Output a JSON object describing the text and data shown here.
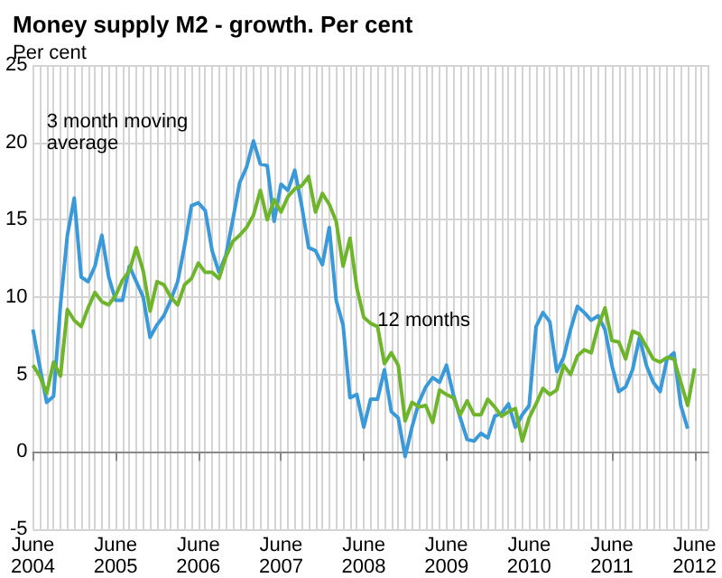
{
  "chart_data": {
    "type": "line",
    "title": "Money supply M2 - growth. Per cent",
    "ylabel": "Per cent",
    "series": [
      {
        "name": "3 month moving average",
        "color": "#3a9ad9",
        "x": [
          "2004-06",
          "2004-07",
          "2004-08",
          "2004-09",
          "2004-10",
          "2004-11",
          "2004-12",
          "2005-01",
          "2005-02",
          "2005-03",
          "2005-04",
          "2005-05",
          "2005-06",
          "2005-07",
          "2005-08",
          "2005-09",
          "2005-10",
          "2005-11",
          "2005-12",
          "2006-01",
          "2006-02",
          "2006-03",
          "2006-04",
          "2006-05",
          "2006-06",
          "2006-07",
          "2006-08",
          "2006-09",
          "2006-10",
          "2006-11",
          "2006-12",
          "2007-01",
          "2007-02",
          "2007-03",
          "2007-04",
          "2007-05",
          "2007-06",
          "2007-07",
          "2007-08",
          "2007-09",
          "2007-10",
          "2007-11",
          "2007-12",
          "2008-01",
          "2008-02",
          "2008-03",
          "2008-04",
          "2008-05",
          "2008-06",
          "2008-07",
          "2008-08",
          "2008-09",
          "2008-10",
          "2008-11",
          "2008-12",
          "2009-01",
          "2009-02",
          "2009-03",
          "2009-04",
          "2009-05",
          "2009-06",
          "2009-07",
          "2009-08",
          "2009-09",
          "2009-10",
          "2009-11",
          "2009-12",
          "2010-01",
          "2010-02",
          "2010-03",
          "2010-04",
          "2010-05",
          "2010-06",
          "2010-07",
          "2010-08",
          "2010-09",
          "2010-10",
          "2010-11",
          "2010-12",
          "2011-01",
          "2011-02",
          "2011-03",
          "2011-04",
          "2011-05",
          "2011-06",
          "2011-07",
          "2011-08",
          "2011-09",
          "2011-10",
          "2011-11",
          "2011-12",
          "2012-01",
          "2012-02",
          "2012-03",
          "2012-04",
          "2012-05"
        ],
        "values": [
          7.9,
          5.5,
          3.2,
          3.6,
          9.5,
          14,
          16.4,
          11.3,
          11,
          12,
          14,
          11.3,
          9.8,
          9.8,
          12,
          11,
          10,
          7.4,
          8.2,
          8.8,
          9.8,
          11,
          13.3,
          15.9,
          16.1,
          15.6,
          13,
          11.6,
          12.7,
          15,
          17.4,
          18.4,
          20.1,
          18.6,
          18.5,
          14.9,
          17.3,
          16.9,
          18.2,
          15.9,
          13.2,
          13,
          12.1,
          14.5,
          9.8,
          8.2,
          3.5,
          3.7,
          1.6,
          3.4,
          3.4,
          5.3,
          2.6,
          2.2,
          -0.3,
          1.6,
          3.2,
          4.2,
          4.8,
          4.5,
          5.6,
          3.7,
          2.2,
          0.8,
          0.7,
          1.2,
          0.9,
          2.3,
          2.5,
          3.1,
          1.6,
          2.4,
          3.0,
          8.1,
          9.0,
          8.4,
          5.2,
          6.1,
          7.9,
          9.4,
          9.0,
          8.5,
          8.8,
          7.9,
          5.6,
          3.9,
          4.2,
          5.3,
          7.4,
          5.6,
          4.5,
          3.9,
          6.0,
          6.4,
          3.0,
          1.5
        ]
      },
      {
        "name": "12 months",
        "color": "#6fb52c",
        "x": [
          "2004-06",
          "2004-07",
          "2004-08",
          "2004-09",
          "2004-10",
          "2004-11",
          "2004-12",
          "2005-01",
          "2005-02",
          "2005-03",
          "2005-04",
          "2005-05",
          "2005-06",
          "2005-07",
          "2005-08",
          "2005-09",
          "2005-10",
          "2005-11",
          "2005-12",
          "2006-01",
          "2006-02",
          "2006-03",
          "2006-04",
          "2006-05",
          "2006-06",
          "2006-07",
          "2006-08",
          "2006-09",
          "2006-10",
          "2006-11",
          "2006-12",
          "2007-01",
          "2007-02",
          "2007-03",
          "2007-04",
          "2007-05",
          "2007-06",
          "2007-07",
          "2007-08",
          "2007-09",
          "2007-10",
          "2007-11",
          "2007-12",
          "2008-01",
          "2008-02",
          "2008-03",
          "2008-04",
          "2008-05",
          "2008-06",
          "2008-07",
          "2008-08",
          "2008-09",
          "2008-10",
          "2008-11",
          "2008-12",
          "2009-01",
          "2009-02",
          "2009-03",
          "2009-04",
          "2009-05",
          "2009-06",
          "2009-07",
          "2009-08",
          "2009-09",
          "2009-10",
          "2009-11",
          "2009-12",
          "2010-01",
          "2010-02",
          "2010-03",
          "2010-04",
          "2010-05",
          "2010-06",
          "2010-07",
          "2010-08",
          "2010-09",
          "2010-10",
          "2010-11",
          "2010-12",
          "2011-01",
          "2011-02",
          "2011-03",
          "2011-04",
          "2011-05",
          "2011-06",
          "2011-07",
          "2011-08",
          "2011-09",
          "2011-10",
          "2011-11",
          "2011-12",
          "2012-01",
          "2012-02",
          "2012-03",
          "2012-04",
          "2012-05",
          "2012-06"
        ],
        "values": [
          5.6,
          4.9,
          3.8,
          5.8,
          4.9,
          9.2,
          8.5,
          8.1,
          9.3,
          10.3,
          9.7,
          9.5,
          10.1,
          11.1,
          11.7,
          13.2,
          11.7,
          9.1,
          11,
          10.8,
          10,
          9.5,
          10.8,
          11.2,
          12.2,
          11.6,
          11.6,
          11.2,
          12.6,
          13.6,
          14,
          14.5,
          15.3,
          16.9,
          15,
          16.3,
          15.5,
          16.5,
          17,
          17.2,
          17.8,
          15.5,
          16.7,
          16,
          14.9,
          12,
          13.8,
          10.6,
          8.7,
          8.3,
          8.1,
          5.7,
          6.4,
          5.6,
          2.0,
          3.2,
          2.9,
          3.0,
          1.9,
          4.0,
          3.7,
          3.5,
          2.4,
          3.3,
          2.4,
          2.4,
          3.4,
          2.9,
          2.3,
          2.6,
          2.8,
          0.7,
          2.2,
          3.1,
          4.1,
          3.7,
          4.0,
          5.6,
          5.0,
          6.2,
          6.6,
          6.4,
          8.1,
          9.3,
          7.2,
          7.1,
          6.0,
          7.8,
          7.6,
          6.8,
          6.0,
          5.8,
          6.1,
          6.0,
          4.5,
          3.0,
          5.4
        ]
      }
    ],
    "xlim": [
      "2004-06",
      "2012-08"
    ],
    "xticks": [
      {
        "value": "2004-06",
        "label": "June\n2004"
      },
      {
        "value": "2005-06",
        "label": "June\n2005"
      },
      {
        "value": "2006-06",
        "label": "June\n2006"
      },
      {
        "value": "2007-06",
        "label": "June\n2007"
      },
      {
        "value": "2008-06",
        "label": "June\n2008"
      },
      {
        "value": "2009-06",
        "label": "June\n2009"
      },
      {
        "value": "2010-06",
        "label": "June\n2010"
      },
      {
        "value": "2011-06",
        "label": "June\n2011"
      },
      {
        "value": "2012-06",
        "label": "June\n2012"
      }
    ],
    "ylim": [
      -5,
      25
    ],
    "yticks": [
      -5,
      0,
      5,
      10,
      15,
      20,
      25
    ],
    "grid": true,
    "legend": false,
    "marker": "none",
    "line_style": "solid"
  }
}
